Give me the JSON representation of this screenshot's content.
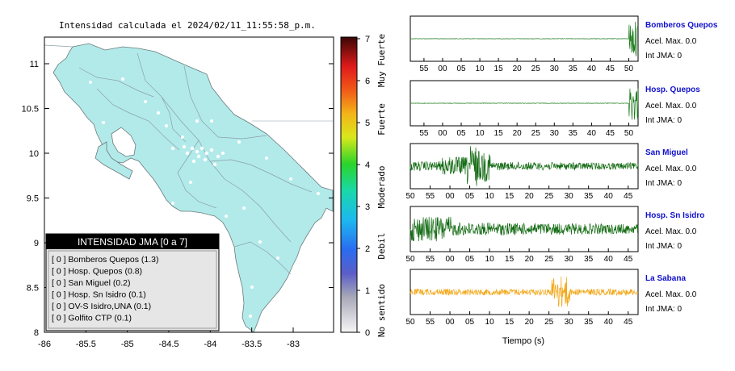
{
  "map": {
    "title": "Intensidad calculada el 2024/02/11_11:55:58_p.m.",
    "x_ticks": [
      "-86",
      "-85.5",
      "-85",
      "-84.5",
      "-84",
      "-83.5",
      "-83"
    ],
    "y_ticks": [
      "8",
      "8.5",
      "9",
      "9.5",
      "10",
      "10.5",
      "11"
    ],
    "land_color": "#b2eaea",
    "legend": {
      "title": "INTENSIDAD JMA [0 a 7]",
      "items": [
        "[ 0 ]  Bomberos Quepos (1.3)",
        "[ 0 ]  Hosp. Quepos (0.8)",
        "[ 0 ]  San Miguel (0.2)",
        "[ 0 ]  Hosp. Sn Isidro (0.1)",
        "[ 0 ]  OV-S Isidro,UNA (0.1)",
        "[ 0 ]  Golfito CTP (0.1)"
      ]
    }
  },
  "colorbar": {
    "ticks": [
      "0",
      "1",
      "2",
      "3",
      "4",
      "5",
      "6",
      "7"
    ],
    "levels": [
      "No sentido",
      "Debil",
      "Moderado",
      "Fuerte",
      "Muy Fuerte"
    ]
  },
  "traces": {
    "xlabel": "Tiempo (s)",
    "stations": [
      {
        "name": "Bomberos Quepos",
        "accel": "Acel. Max. 0.0",
        "int": "Int JMA: 0",
        "color": "#1a7a1a",
        "ticks": [
          "55",
          "00",
          "05",
          "10",
          "15",
          "20",
          "25",
          "30",
          "35",
          "40",
          "45",
          "50"
        ],
        "burst": "end"
      },
      {
        "name": "Hosp. Quepos",
        "accel": "Acel. Max. 0.0",
        "int": "Int JMA: 0",
        "color": "#1a7a1a",
        "ticks": [
          "55",
          "00",
          "05",
          "10",
          "15",
          "20",
          "25",
          "30",
          "35",
          "40",
          "45",
          "50"
        ],
        "burst": "end"
      },
      {
        "name": "San Miguel",
        "accel": "Acel. Max. 0.0",
        "int": "Int JMA: 0",
        "color": "#136b13",
        "ticks": [
          "50",
          "55",
          "00",
          "05",
          "10",
          "15",
          "20",
          "25",
          "30",
          "35",
          "40",
          "45"
        ],
        "burst": "mid"
      },
      {
        "name": "Hosp. Sn Isidro",
        "accel": "Acel. Max. 0.0",
        "int": "Int JMA: 0",
        "color": "#136b13",
        "ticks": [
          "50",
          "55",
          "00",
          "05",
          "10",
          "15",
          "20",
          "25",
          "30",
          "35",
          "40",
          "45"
        ],
        "burst": "start"
      },
      {
        "name": "La Sabana",
        "accel": "Acel. Max. 0.0",
        "int": "Int JMA: 0",
        "color": "#f2a81a",
        "ticks": [
          "50",
          "55",
          "00",
          "05",
          "10",
          "15",
          "20",
          "25",
          "30",
          "35",
          "40",
          "45"
        ],
        "burst": "late"
      }
    ]
  }
}
